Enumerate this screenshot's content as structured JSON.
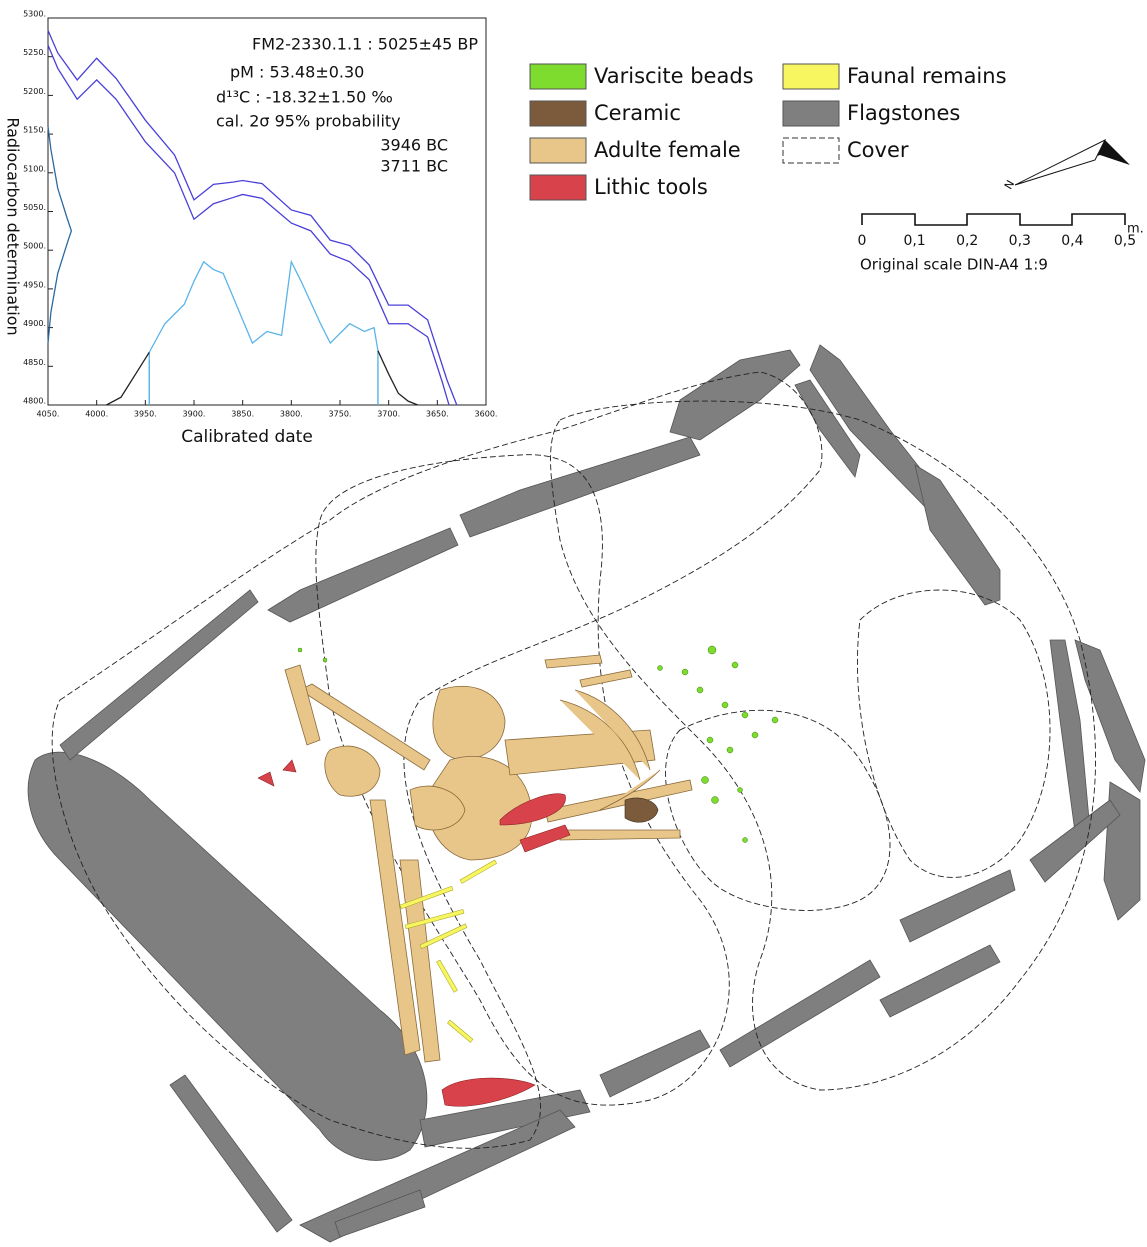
{
  "chart_data": {
    "type": "line",
    "xlabel": "Calibrated date",
    "ylabel": "Radiocarbon determination",
    "xlim": [
      4050,
      3600
    ],
    "ylim": [
      4800,
      5300
    ],
    "xticks": [
      {
        "value": 4050,
        "label": "4050."
      },
      {
        "value": 4000,
        "label": "4000."
      },
      {
        "value": 3950,
        "label": "3950."
      },
      {
        "value": 3900,
        "label": "3900."
      },
      {
        "value": 3850,
        "label": "3850."
      },
      {
        "value": 3800,
        "label": "3800."
      },
      {
        "value": 3750,
        "label": "3750."
      },
      {
        "value": 3700,
        "label": "3700."
      },
      {
        "value": 3650,
        "label": "3650."
      },
      {
        "value": 3600,
        "label": "3600."
      }
    ],
    "yticks": [
      {
        "value": 4800,
        "label": "4800."
      },
      {
        "value": 4850,
        "label": "4850."
      },
      {
        "value": 4900,
        "label": "4900."
      },
      {
        "value": 4950,
        "label": "4950."
      },
      {
        "value": 5000,
        "label": "5000."
      },
      {
        "value": 5050,
        "label": "5050."
      },
      {
        "value": 5100,
        "label": "5100."
      },
      {
        "value": 5150,
        "label": "5150."
      },
      {
        "value": 5200,
        "label": "5200."
      },
      {
        "value": 5250,
        "label": "5250."
      },
      {
        "value": 5300,
        "label": "5300."
      }
    ],
    "annotations": [
      "FM2-2330.1.1 : 5025±45 BP",
      "pM : 53.48±0.30",
      "d¹³C : -18.32±1.50 ‰",
      "cal. 2σ 95% probability"
    ],
    "cal_range": [
      {
        "value": 3946,
        "label": "3946 BC"
      },
      {
        "value": 3711,
        "label": "3711 BC"
      }
    ],
    "range_color": "#5ab4ea",
    "series": [
      {
        "color": "#4a3fd8",
        "x": [
          4050,
          4040,
          4020,
          4000,
          3980,
          3950,
          3920,
          3900,
          3880,
          3860,
          3850,
          3830,
          3800,
          3780,
          3760,
          3740,
          3720,
          3700,
          3680,
          3660,
          3640,
          3630
        ],
        "values": [
          5284,
          5255,
          5220,
          5248,
          5222,
          5168,
          5123,
          5065,
          5085,
          5088,
          5090,
          5086,
          5052,
          5045,
          5013,
          5006,
          4981,
          4929,
          4929,
          4910,
          4832,
          4800
        ]
      },
      {
        "color": "#4a3fd8",
        "x": [
          4050,
          4040,
          4020,
          4000,
          3980,
          3950,
          3920,
          3900,
          3880,
          3860,
          3850,
          3830,
          3800,
          3780,
          3760,
          3740,
          3720,
          3700,
          3680,
          3660,
          3645,
          3638
        ],
        "values": [
          5265,
          5235,
          5195,
          5220,
          5195,
          5140,
          5100,
          5040,
          5060,
          5068,
          5072,
          5067,
          5035,
          5025,
          4995,
          4985,
          4962,
          4905,
          4905,
          4888,
          4830,
          4800
        ]
      },
      {
        "color": "#5ab4ea",
        "x": [
          3946,
          3946,
          3930,
          3910,
          3900,
          3890,
          3880,
          3870,
          3850,
          3840,
          3825,
          3810,
          3800,
          3790,
          3770,
          3760,
          3740,
          3725,
          3715,
          3711,
          3711
        ],
        "values": [
          4800,
          4868,
          4905,
          4930,
          4960,
          4985,
          4975,
          4970,
          4910,
          4880,
          4895,
          4890,
          4985,
          4960,
          4905,
          4880,
          4905,
          4895,
          4900,
          4870,
          4800
        ]
      },
      {
        "color": "#222222",
        "x": [
          3990,
          3975,
          3960,
          3950,
          3946
        ],
        "values": [
          4800,
          4810,
          4840,
          4860,
          4868
        ]
      },
      {
        "color": "#222222",
        "x": [
          3711,
          3700,
          3690,
          3680,
          3670
        ],
        "values": [
          4870,
          4840,
          4815,
          4805,
          4800
        ]
      },
      {
        "color": "#2a6aa0",
        "x": [
          4050,
          4047,
          4040,
          4030,
          4026,
          4030,
          4040,
          4047,
          4050
        ],
        "values": [
          4880,
          4920,
          4970,
          5010,
          5025,
          5040,
          5080,
          5130,
          5160
        ]
      }
    ]
  },
  "legend": [
    {
      "label": "Variscite beads",
      "color": "#7ddc2e"
    },
    {
      "label": "Ceramic",
      "color": "#7b5b3b"
    },
    {
      "label": "Adulte female",
      "color": "#e8c68a"
    },
    {
      "label": "Lithic tools",
      "color": "#d8434b"
    },
    {
      "label": "Faunal remains",
      "color": "#f7f560"
    },
    {
      "label": "Flagstones",
      "color": "#7f7f7f"
    },
    {
      "label": "Cover",
      "color": "none"
    }
  ],
  "north": "N",
  "scale": {
    "labels": [
      "0",
      "0,1",
      "0,2",
      "0,3",
      "0,4",
      "0,5"
    ],
    "unit": "m.",
    "caption": "Original scale DIN-A4 1:9"
  }
}
